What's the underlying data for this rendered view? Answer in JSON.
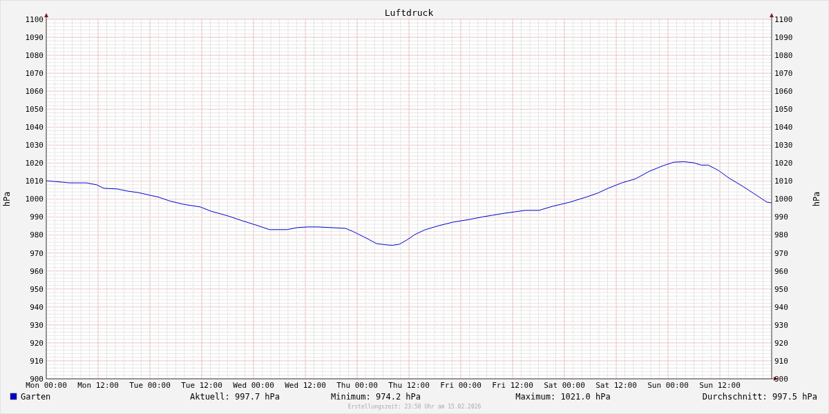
{
  "chart_data": {
    "type": "line",
    "title": "Luftdruck",
    "ylabel": "hPa",
    "y2label": "hPa",
    "x": [
      "2026-02-09T00:00",
      "2026-02-09T03:42",
      "2026-02-09T05:18",
      "2026-02-09T09:18",
      "2026-02-09T11:42",
      "2026-02-09T13:18",
      "2026-02-09T16:30",
      "2026-02-09T18:54",
      "2026-02-09T21:18",
      "2026-02-10T02:06",
      "2026-02-10T04:30",
      "2026-02-10T07:42",
      "2026-02-10T11:42",
      "2026-02-10T14:06",
      "2026-02-10T18:06",
      "2026-02-10T21:18",
      "2026-02-11T00:30",
      "2026-02-11T03:42",
      "2026-02-11T07:42",
      "2026-02-11T10:06",
      "2026-02-11T12:30",
      "2026-02-11T14:54",
      "2026-02-11T18:06",
      "2026-02-11T21:18",
      "2026-02-11T22:54",
      "2026-02-12T02:06",
      "2026-02-12T04:30",
      "2026-02-12T06:54",
      "2026-02-12T08:12",
      "2026-02-12T09:48",
      "2026-02-12T11:42",
      "2026-02-12T13:18",
      "2026-02-12T15:42",
      "2026-02-12T18:54",
      "2026-02-12T22:06",
      "2026-02-13T02:06",
      "2026-02-13T05:18",
      "2026-02-13T10:06",
      "2026-02-13T14:54",
      "2026-02-13T18:06",
      "2026-02-13T21:18",
      "2026-02-14T01:18",
      "2026-02-14T05:18",
      "2026-02-14T07:42",
      "2026-02-14T10:06",
      "2026-02-14T13:18",
      "2026-02-14T16:30",
      "2026-02-14T19:42",
      "2026-02-14T22:54",
      "2026-02-15T01:18",
      "2026-02-15T03:42",
      "2026-02-15T06:06",
      "2026-02-15T07:42",
      "2026-02-15T09:18",
      "2026-02-15T11:42",
      "2026-02-15T14:06",
      "2026-02-15T17:18",
      "2026-02-15T20:30",
      "2026-02-15T22:54",
      "2026-02-15T23:58"
    ],
    "series": [
      {
        "name": "Garten",
        "color": "#0000cc",
        "values": [
          1010.2,
          1009.4,
          1009,
          1009,
          1007.9,
          1006,
          1005.6,
          1004.4,
          1003.6,
          1001,
          999,
          997.1,
          995.6,
          993.3,
          990.6,
          988,
          985.6,
          983,
          983,
          984.1,
          984.5,
          984.5,
          984.1,
          983.7,
          982.1,
          978.3,
          975.2,
          974.5,
          974.3,
          974.9,
          977.5,
          980.2,
          982.9,
          985.2,
          987.1,
          988.7,
          990.2,
          992.1,
          993.7,
          993.7,
          996,
          998.3,
          1001.3,
          1003.3,
          1006,
          1009,
          1011.3,
          1015.5,
          1018.6,
          1020.5,
          1020.8,
          1020.1,
          1018.9,
          1018.9,
          1015.9,
          1011.7,
          1007.1,
          1002.1,
          998.3,
          997.9
        ]
      }
    ],
    "xlim": [
      "2026-02-09T00:00",
      "2026-02-16T00:00"
    ],
    "xticks": [
      {
        "value": "2026-02-09T00:00",
        "label": "Mon 00:00"
      },
      {
        "value": "2026-02-09T12:00",
        "label": "Mon 12:00"
      },
      {
        "value": "2026-02-10T00:00",
        "label": "Tue 00:00"
      },
      {
        "value": "2026-02-10T12:00",
        "label": "Tue 12:00"
      },
      {
        "value": "2026-02-11T00:00",
        "label": "Wed 00:00"
      },
      {
        "value": "2026-02-11T12:00",
        "label": "Wed 12:00"
      },
      {
        "value": "2026-02-12T00:00",
        "label": "Thu 00:00"
      },
      {
        "value": "2026-02-12T12:00",
        "label": "Thu 12:00"
      },
      {
        "value": "2026-02-13T00:00",
        "label": "Fri 00:00"
      },
      {
        "value": "2026-02-13T12:00",
        "label": "Fri 12:00"
      },
      {
        "value": "2026-02-14T00:00",
        "label": "Sat 00:00"
      },
      {
        "value": "2026-02-14T12:00",
        "label": "Sat 12:00"
      },
      {
        "value": "2026-02-15T00:00",
        "label": "Sun 00:00"
      },
      {
        "value": "2026-02-15T12:00",
        "label": "Sun 12:00"
      }
    ],
    "ylim": [
      900,
      1100
    ],
    "yticks": [
      900,
      910,
      920,
      930,
      940,
      950,
      960,
      970,
      980,
      990,
      1000,
      1010,
      1020,
      1030,
      1040,
      1050,
      1060,
      1070,
      1080,
      1090,
      1100
    ],
    "y2lim": [
      900,
      1100
    ],
    "y2ticks": [
      900,
      910,
      920,
      930,
      940,
      950,
      960,
      970,
      980,
      990,
      1000,
      1010,
      1020,
      1030,
      1040,
      1050,
      1060,
      1070,
      1080,
      1090,
      1100
    ],
    "grid": true,
    "legend": "bottom left",
    "annotations": [
      "Aktuell: 997.7 hPa",
      "Minimum: 974.2 hPa",
      "Maximum: 1021.0 hPa",
      "Durchschnitt: 997.5 hPa",
      "Erstellungszeit: 23:58 Uhr am 15.02.2026"
    ]
  }
}
